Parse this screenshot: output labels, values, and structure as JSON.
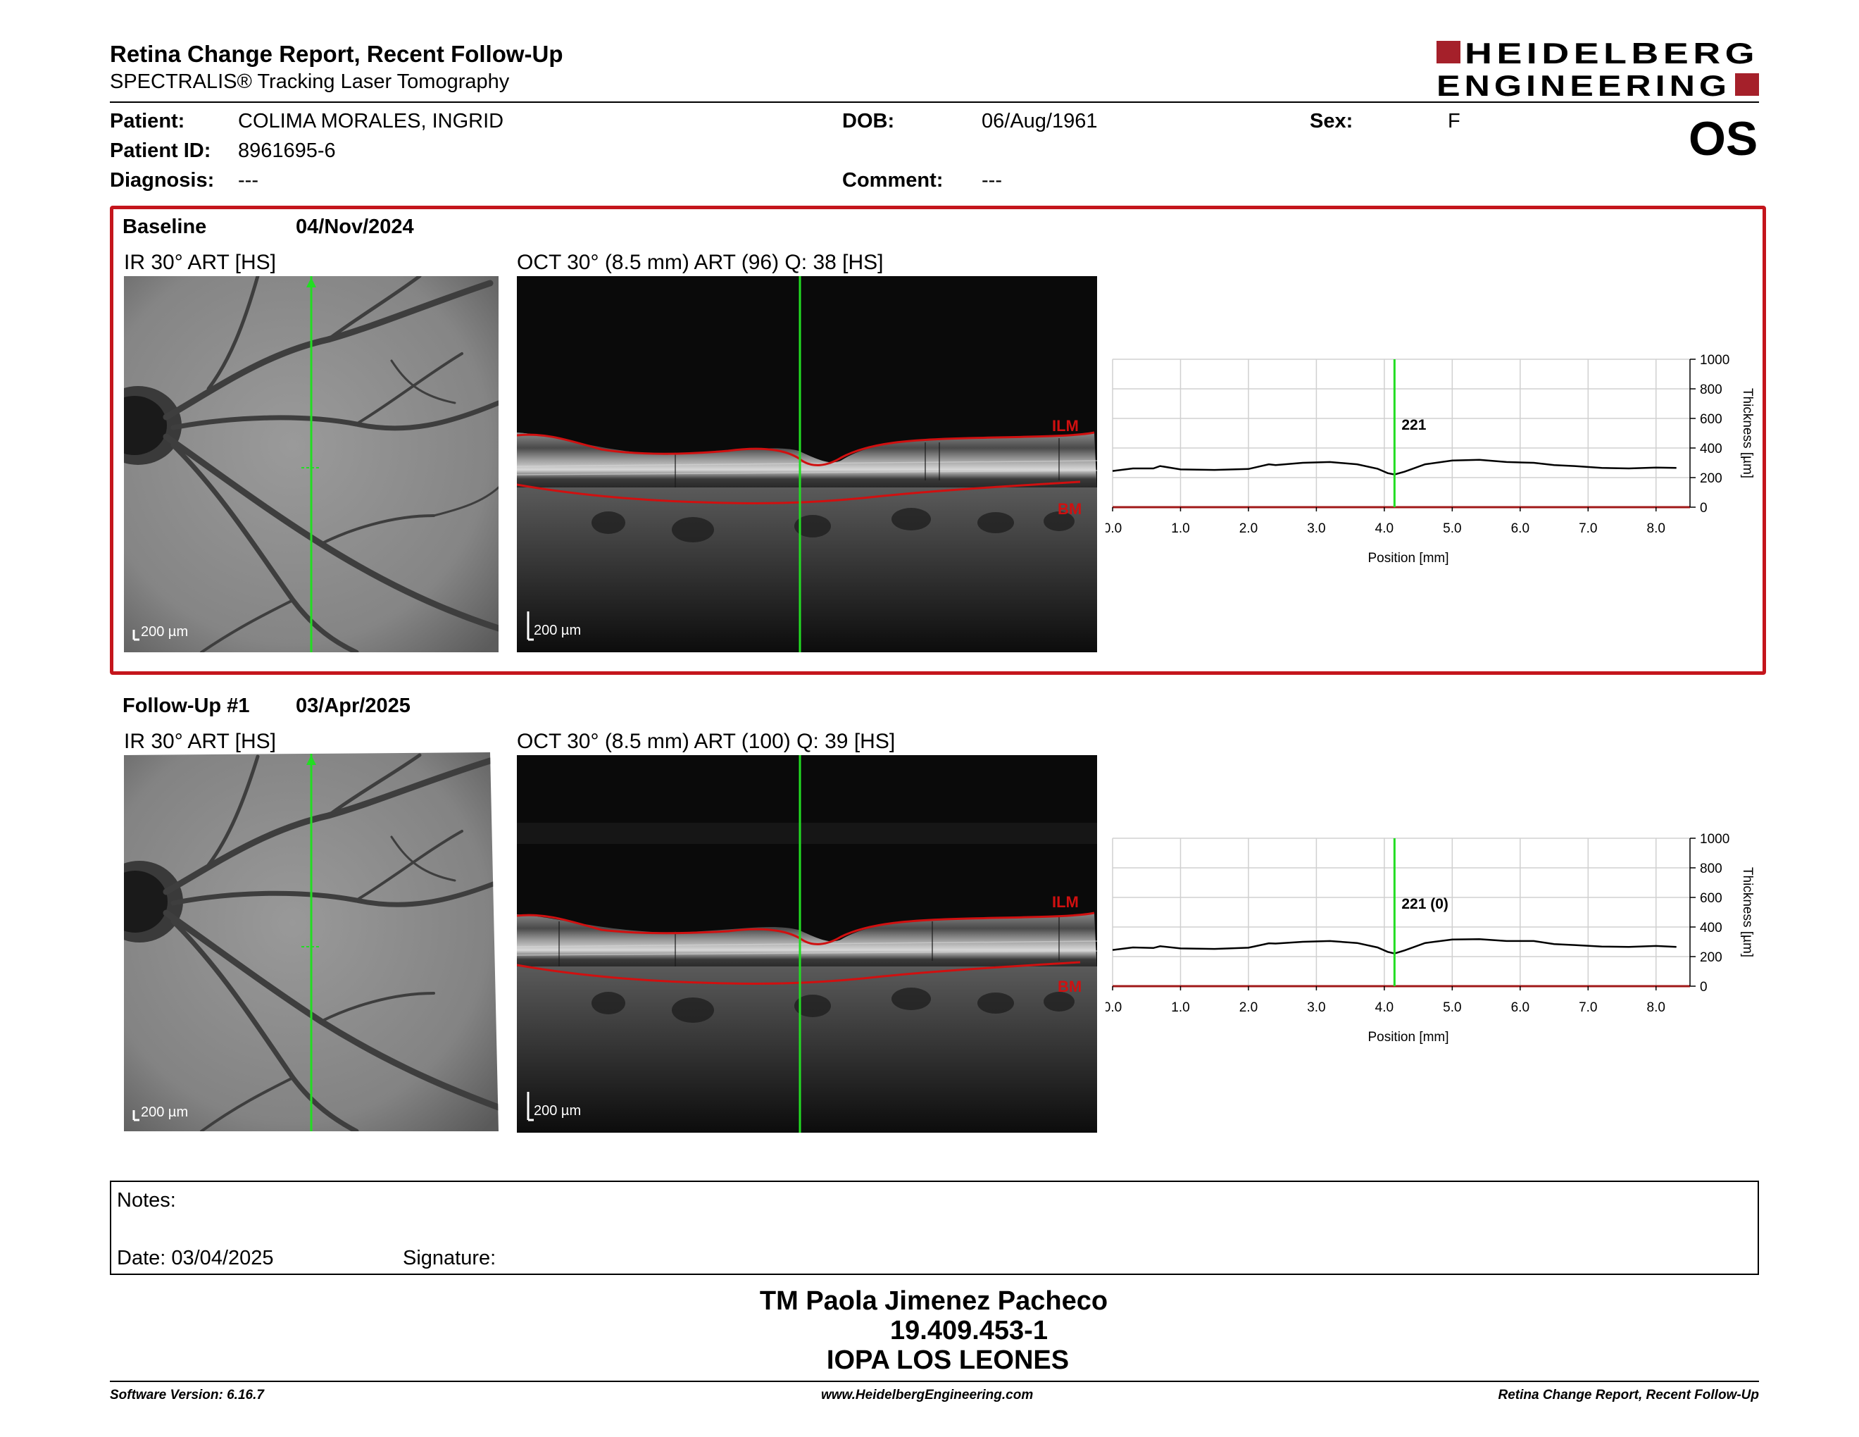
{
  "report": {
    "title": "Retina Change Report, Recent Follow-Up",
    "subtitle": "SPECTRALIS® Tracking Laser Tomography",
    "logo_line1": "HEIDELBERG",
    "logo_line2": "ENGINEERING",
    "eye": "OS"
  },
  "patient": {
    "patient_label": "Patient:",
    "patient_value": "COLIMA MORALES, INGRID",
    "id_label": "Patient ID:",
    "id_value": "8961695-6",
    "diagnosis_label": "Diagnosis:",
    "diagnosis_value": "---",
    "dob_label": "DOB:",
    "dob_value": "06/Aug/1961",
    "comment_label": "Comment:",
    "comment_value": "---",
    "sex_label": "Sex:",
    "sex_value": "F"
  },
  "baseline": {
    "label": "Baseline",
    "date": "04/Nov/2024",
    "ir_title": "IR 30° ART [HS]",
    "oct_title": "OCT 30° (8.5 mm) ART (96) Q: 38 [HS]",
    "ir_scale": "200 µm",
    "oct_scale": "200 µm",
    "ilm": "ILM",
    "bm": "BM",
    "thickness_marker": "221"
  },
  "followup": {
    "label": "Follow-Up #1",
    "date": "03/Apr/2025",
    "ir_title": "IR 30° ART [HS]",
    "oct_title": "OCT 30° (8.5 mm) ART (100) Q: 39 [HS]",
    "ir_scale": "200 µm",
    "oct_scale": "200 µm",
    "ilm": "ILM",
    "bm": "BM",
    "thickness_marker": "221 (0)"
  },
  "chart_data": [
    {
      "type": "line",
      "name": "baseline-thickness",
      "xlabel": "Position [mm]",
      "ylabel": "Thickness [µm]",
      "xlim": [
        0,
        8.5
      ],
      "ylim": [
        0,
        1000
      ],
      "x_ticks": [
        "0.0",
        "1.0",
        "2.0",
        "3.0",
        "4.0",
        "5.0",
        "6.0",
        "7.0",
        "8.0"
      ],
      "y_ticks": [
        "0",
        "200",
        "400",
        "600",
        "800",
        "1000"
      ],
      "grid": true,
      "marker_x": 4.15,
      "marker_label": "221",
      "x": [
        0,
        0.3,
        0.6,
        0.7,
        1.0,
        1.5,
        2.0,
        2.3,
        2.4,
        2.8,
        3.2,
        3.6,
        3.9,
        4.05,
        4.15,
        4.3,
        4.6,
        5.0,
        5.4,
        5.8,
        6.2,
        6.5,
        6.8,
        7.2,
        7.6,
        8.0,
        8.3
      ],
      "y": [
        245,
        262,
        262,
        278,
        255,
        252,
        258,
        290,
        285,
        300,
        305,
        290,
        260,
        230,
        221,
        240,
        290,
        315,
        320,
        305,
        300,
        285,
        278,
        265,
        262,
        268,
        265
      ]
    },
    {
      "type": "line",
      "name": "followup-thickness",
      "xlabel": "Position [mm]",
      "ylabel": "Thickness [µm]",
      "xlim": [
        0,
        8.5
      ],
      "ylim": [
        0,
        1000
      ],
      "x_ticks": [
        "0.0",
        "1.0",
        "2.0",
        "3.0",
        "4.0",
        "5.0",
        "6.0",
        "7.0",
        "8.0"
      ],
      "y_ticks": [
        "0",
        "200",
        "400",
        "600",
        "800",
        "1000"
      ],
      "grid": true,
      "marker_x": 4.15,
      "marker_label": "221 (0)",
      "x": [
        0,
        0.3,
        0.6,
        0.7,
        1.0,
        1.5,
        2.0,
        2.3,
        2.4,
        2.8,
        3.2,
        3.6,
        3.9,
        4.05,
        4.15,
        4.3,
        4.6,
        5.0,
        5.4,
        5.8,
        6.2,
        6.5,
        6.8,
        7.2,
        7.6,
        8.0,
        8.3
      ],
      "y": [
        245,
        262,
        258,
        270,
        255,
        252,
        260,
        290,
        288,
        300,
        305,
        292,
        262,
        232,
        221,
        242,
        292,
        315,
        318,
        305,
        305,
        285,
        278,
        268,
        265,
        272,
        265
      ]
    }
  ],
  "notes": {
    "notes_label": "Notes:",
    "date_label": "Date: 03/04/2025",
    "signature_label": "Signature:"
  },
  "technician": {
    "name": "TM Paola Jimenez Pacheco",
    "id": "19.409.453-1",
    "institution": "IOPA LOS LEONES"
  },
  "footer": {
    "software": "Software Version: 6.16.7",
    "website": "www.HeidelbergEngineering.com",
    "report_name": "Retina Change Report, Recent Follow-Up"
  },
  "colors": {
    "brand_red": "#a5202a",
    "box_red": "#c4151c",
    "scan_green": "#22dd22",
    "layer_red": "#d01010"
  }
}
